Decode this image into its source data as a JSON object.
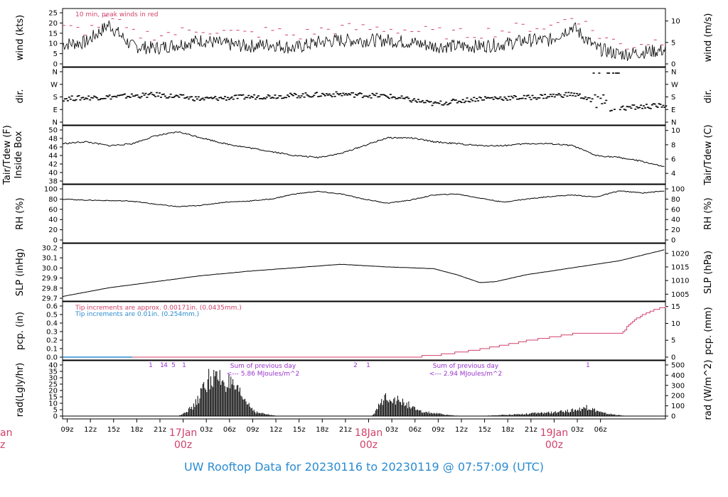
{
  "footer": {
    "title": "UW Rooftop Data for 20230116  to  20230119 @ 07:57:09  (UTC)"
  },
  "colors": {
    "red": "#d0406a",
    "blue": "#2a8bd0",
    "purple": "#9933cc",
    "black": "#000000"
  },
  "chart_data": [
    {
      "id": "wind",
      "type": "line",
      "ylabel_left": "wind (kts)",
      "ylabel_right": "wind (m/s)",
      "yticks_left": [
        "0",
        "5",
        "10",
        "15",
        "20",
        "25"
      ],
      "ylim": [
        0,
        26
      ],
      "yticks_right": [
        "0",
        "5",
        "10"
      ],
      "annotation": "10 min, peak winds in red",
      "series": [
        {
          "x_hours": [
            0,
            3,
            6,
            9,
            12,
            15,
            18,
            21,
            24,
            27,
            30,
            33,
            36,
            39,
            42,
            45,
            48,
            51,
            54,
            57,
            60,
            63,
            66,
            69,
            72,
            73,
            75,
            78
          ],
          "values": [
            10,
            11,
            20,
            9,
            8,
            10,
            12,
            10,
            9,
            10,
            8,
            11,
            12,
            12,
            12,
            11,
            9,
            9,
            9,
            10,
            12,
            12,
            19,
            8,
            5,
            5,
            6,
            7
          ]
        },
        {
          "x_hours": [
            0,
            3,
            6,
            9,
            12,
            15,
            18,
            21,
            24,
            27,
            30,
            33,
            36,
            39,
            42,
            45,
            48,
            51,
            54,
            57,
            60,
            63,
            66,
            69,
            72,
            73,
            75,
            78
          ],
          "values": [
            18,
            17,
            23,
            15,
            15,
            16,
            18,
            16,
            15,
            17,
            14,
            17,
            18,
            18,
            18,
            17,
            16,
            15,
            16,
            17,
            19,
            19,
            25,
            15,
            10,
            9,
            11,
            12
          ]
        }
      ]
    },
    {
      "id": "dir",
      "type": "scatter",
      "ylabel_left": "dir.",
      "ylabel_right": "dir.",
      "yticks_left": [
        "N",
        "E",
        "S",
        "W",
        "N"
      ],
      "yticks_right": [
        "N",
        "E",
        "S",
        "W",
        "N"
      ],
      "ylim": [
        0,
        360
      ],
      "series": [
        {
          "x_hours": [
            0,
            6,
            12,
            18,
            24,
            30,
            36,
            42,
            48,
            54,
            60,
            66,
            72,
            75,
            78
          ],
          "values": [
            168,
            180,
            195,
            165,
            180,
            190,
            200,
            185,
            130,
            170,
            175,
            200,
            100,
            110,
            120
          ]
        }
      ]
    },
    {
      "id": "temp",
      "type": "line",
      "ylabel_left": "Tair/Tdew (F)",
      "ylabel_left_inner": "Inside Box",
      "ylabel_right": "Tair/Tdew (C)",
      "yticks_left": [
        "38",
        "40",
        "42",
        "44",
        "46",
        "48",
        "50"
      ],
      "ylim": [
        37,
        50
      ],
      "yticks_right": [
        "4",
        "6",
        "8",
        "10"
      ],
      "series": [
        {
          "x_hours": [
            0,
            3,
            6,
            9,
            12,
            15,
            18,
            21,
            24,
            27,
            30,
            33,
            36,
            39,
            42,
            45,
            48,
            51,
            54,
            57,
            60,
            63,
            66,
            69,
            72,
            75,
            78
          ],
          "values": [
            46.5,
            47,
            46,
            46.5,
            48.5,
            49.5,
            48,
            46.5,
            45.5,
            44.5,
            43.5,
            43,
            44,
            46,
            48,
            48,
            47,
            46.5,
            46,
            46,
            46.5,
            46.5,
            46,
            43.5,
            43,
            42,
            40.5
          ]
        }
      ]
    },
    {
      "id": "rh",
      "type": "line",
      "ylabel_left": "RH (%)",
      "ylabel_right": "RH (%)",
      "yticks_left": [
        "0",
        "20",
        "40",
        "60",
        "80",
        "100"
      ],
      "ylim": [
        0,
        100
      ],
      "yticks_right": [
        "0",
        "20",
        "40",
        "60",
        "80",
        "100"
      ],
      "series": [
        {
          "x_hours": [
            0,
            3,
            6,
            9,
            12,
            15,
            18,
            21,
            24,
            27,
            30,
            33,
            36,
            39,
            42,
            45,
            48,
            51,
            54,
            57,
            60,
            63,
            66,
            69,
            72,
            75,
            78
          ],
          "values": [
            80,
            78,
            77,
            76,
            70,
            65,
            68,
            74,
            76,
            80,
            90,
            95,
            90,
            80,
            72,
            78,
            88,
            90,
            82,
            74,
            80,
            85,
            88,
            84,
            96,
            92,
            96
          ]
        }
      ]
    },
    {
      "id": "slp",
      "type": "line",
      "ylabel_left": "SLP (inHg)",
      "ylabel_right": "SLP (hPa)",
      "yticks_left": [
        "29.7",
        "29.8",
        "29.9",
        "30.0",
        "30.1",
        "30.2"
      ],
      "ylim": [
        29.63,
        30.21
      ],
      "yticks_right": [
        "1005",
        "1010",
        "1015",
        "1020"
      ],
      "series": [
        {
          "x_hours": [
            0,
            6,
            12,
            18,
            24,
            30,
            36,
            42,
            48,
            51,
            54,
            56,
            60,
            66,
            72,
            78
          ],
          "values": [
            29.65,
            29.75,
            29.82,
            29.89,
            29.94,
            29.98,
            30.02,
            29.99,
            29.97,
            29.9,
            29.81,
            29.82,
            29.9,
            29.98,
            30.06,
            30.19
          ]
        }
      ]
    },
    {
      "id": "pcp",
      "type": "line",
      "ylabel_left": "pcp. (in)",
      "ylabel_right": "pcp. (mm)",
      "yticks_left": [
        "0.0",
        "0.1",
        "0.2",
        "0.3",
        "0.4",
        "0.5",
        "0.6"
      ],
      "ylim": [
        0,
        0.6
      ],
      "yticks_right": [
        "0",
        "5",
        "10",
        "15"
      ],
      "annotations": [
        "Tip increments are approx. 0.00171in. (0.0435mm.)",
        "Tip increments are 0.01in. (0.254mm.)"
      ],
      "series": [
        {
          "x_hours": [
            0,
            36,
            44,
            48,
            54,
            57,
            60,
            63,
            66,
            69,
            72,
            74,
            76,
            78
          ],
          "values": [
            0,
            0,
            0.005,
            0.03,
            0.1,
            0.15,
            0.2,
            0.24,
            0.28,
            0.27,
            0.27,
            0.45,
            0.55,
            0.6
          ]
        },
        {
          "x_hours": [
            0,
            78
          ],
          "values": [
            0,
            0
          ]
        }
      ]
    },
    {
      "id": "rad",
      "type": "area",
      "ylabel_left": "rad(Lgly/hr)",
      "ylabel_right": "rad (W/m^2)",
      "yticks_left": [
        "0",
        "5",
        "10",
        "15",
        "20",
        "25",
        "30",
        "35",
        "40"
      ],
      "ylim": [
        0,
        44
      ],
      "yticks_right": [
        "0",
        "100",
        "200",
        "300",
        "400",
        "500"
      ],
      "tip_counts": [
        "1",
        "1",
        "4",
        "5",
        "1",
        "2",
        "1"
      ],
      "notes": [
        {
          "line1": "Sum of previous day",
          "line2": "<--- 5.86 MJoules/m^2"
        },
        {
          "line1": "Sum of previous day",
          "line2": "<--- 2.94 MJoules/m^2"
        }
      ],
      "series": [
        {
          "x_hours": [
            15,
            17,
            19,
            21,
            23,
            25,
            27,
            28,
            40,
            42,
            43,
            45,
            46,
            48,
            50,
            52,
            54,
            64,
            66,
            68,
            70,
            72,
            73
          ],
          "values": [
            0,
            10,
            40,
            37,
            22,
            4,
            1,
            0,
            0,
            22,
            17,
            11,
            5,
            3,
            1,
            0,
            0,
            4,
            6,
            9,
            3,
            1,
            0
          ]
        }
      ]
    }
  ],
  "x_axis": {
    "hour_labels": [
      "09z",
      "12z",
      "15z",
      "18z",
      "21z",
      "03z",
      "06z",
      "09z",
      "12z",
      "15z",
      "18z",
      "21z",
      "03z",
      "06z",
      "09z",
      "12z",
      "15z",
      "18z",
      "21z",
      "03z",
      "06z"
    ],
    "date_labels": [
      {
        "top": "17Jan",
        "bottom": "00z"
      },
      {
        "top": "18Jan",
        "bottom": "00z"
      },
      {
        "top": "19Jan",
        "bottom": "00z"
      }
    ],
    "clipped_date_label": {
      "top": "an",
      "bottom": "z"
    }
  }
}
